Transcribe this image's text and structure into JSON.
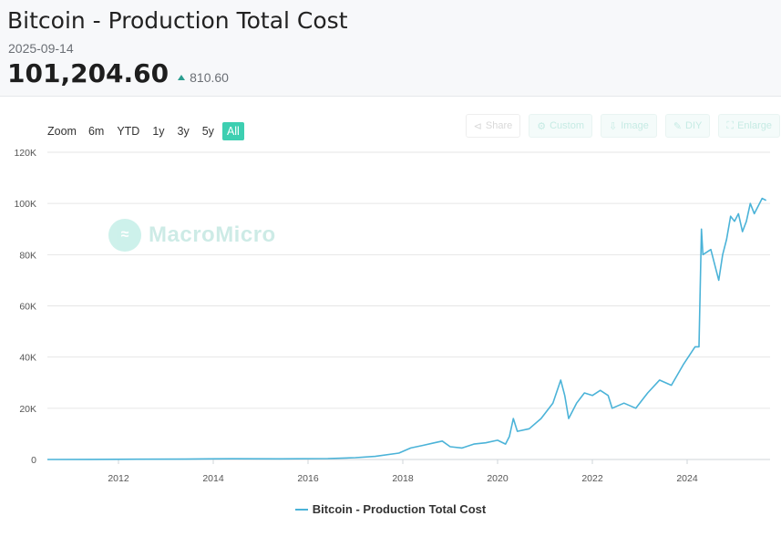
{
  "header": {
    "title": "Bitcoin - Production Total Cost",
    "date": "2025-09-14",
    "value": "101,204.60",
    "change": "810.60"
  },
  "range_selector": {
    "label": "Zoom",
    "buttons": [
      "6m",
      "YTD",
      "1y",
      "3y",
      "5y",
      "All"
    ],
    "active": "All"
  },
  "toolbar": {
    "buttons": [
      {
        "label": "Share",
        "icon": "share-icon"
      },
      {
        "label": "Custom",
        "icon": "gear-icon"
      },
      {
        "label": "Image",
        "icon": "download-icon"
      },
      {
        "label": "DIY",
        "icon": "pencil-icon"
      },
      {
        "label": "Enlarge",
        "icon": "expand-icon"
      }
    ]
  },
  "watermark": {
    "text": "MacroMicro"
  },
  "colors": {
    "series": "#4bb3d8",
    "accent": "#3dcfb1",
    "up": "#2a9d8f"
  },
  "chart_data": {
    "type": "line",
    "series": [
      {
        "name": "Bitcoin - Production Total Cost",
        "points": [
          [
            "2010-07",
            0
          ],
          [
            "2011-06",
            50
          ],
          [
            "2012-06",
            100
          ],
          [
            "2013-06",
            150
          ],
          [
            "2013-12",
            250
          ],
          [
            "2014-06",
            300
          ],
          [
            "2015-06",
            250
          ],
          [
            "2016-06",
            350
          ],
          [
            "2017-01",
            700
          ],
          [
            "2017-06",
            1200
          ],
          [
            "2017-12",
            2500
          ],
          [
            "2018-03",
            4500
          ],
          [
            "2018-06",
            5500
          ],
          [
            "2018-09",
            6500
          ],
          [
            "2018-11",
            7200
          ],
          [
            "2019-01",
            5000
          ],
          [
            "2019-04",
            4500
          ],
          [
            "2019-07",
            6000
          ],
          [
            "2019-10",
            6500
          ],
          [
            "2020-01",
            7500
          ],
          [
            "2020-03",
            6000
          ],
          [
            "2020-04",
            9000
          ],
          [
            "2020-05",
            16000
          ],
          [
            "2020-06",
            11000
          ],
          [
            "2020-09",
            12000
          ],
          [
            "2020-12",
            16000
          ],
          [
            "2021-03",
            22000
          ],
          [
            "2021-05",
            31000
          ],
          [
            "2021-06",
            25000
          ],
          [
            "2021-07",
            16000
          ],
          [
            "2021-09",
            22000
          ],
          [
            "2021-11",
            26000
          ],
          [
            "2022-01",
            25000
          ],
          [
            "2022-03",
            27000
          ],
          [
            "2022-05",
            25000
          ],
          [
            "2022-06",
            20000
          ],
          [
            "2022-09",
            22000
          ],
          [
            "2022-12",
            20000
          ],
          [
            "2023-03",
            26000
          ],
          [
            "2023-06",
            31000
          ],
          [
            "2023-09",
            29000
          ],
          [
            "2023-12",
            37000
          ],
          [
            "2024-03",
            44000
          ],
          [
            "2024-04",
            44000
          ],
          [
            "2024-04-20",
            90000
          ],
          [
            "2024-05",
            80000
          ],
          [
            "2024-07",
            82000
          ],
          [
            "2024-09",
            70000
          ],
          [
            "2024-10",
            80000
          ],
          [
            "2024-11",
            86000
          ],
          [
            "2024-12",
            95000
          ],
          [
            "2025-01",
            93000
          ],
          [
            "2025-02",
            96000
          ],
          [
            "2025-03",
            89000
          ],
          [
            "2025-04",
            93000
          ],
          [
            "2025-05",
            100000
          ],
          [
            "2025-06",
            96000
          ],
          [
            "2025-07",
            99000
          ],
          [
            "2025-08",
            102000
          ],
          [
            "2025-09",
            101204.6
          ]
        ]
      }
    ],
    "x_ticks": [
      "2012",
      "2014",
      "2016",
      "2018",
      "2020",
      "2022",
      "2024"
    ],
    "y_ticks": [
      "0",
      "20K",
      "40K",
      "60K",
      "80K",
      "100K",
      "120K"
    ],
    "ylim": [
      0,
      120000
    ],
    "xlim": [
      "2010-07",
      "2025-09"
    ],
    "grid": true,
    "legend": "bottom-center"
  }
}
